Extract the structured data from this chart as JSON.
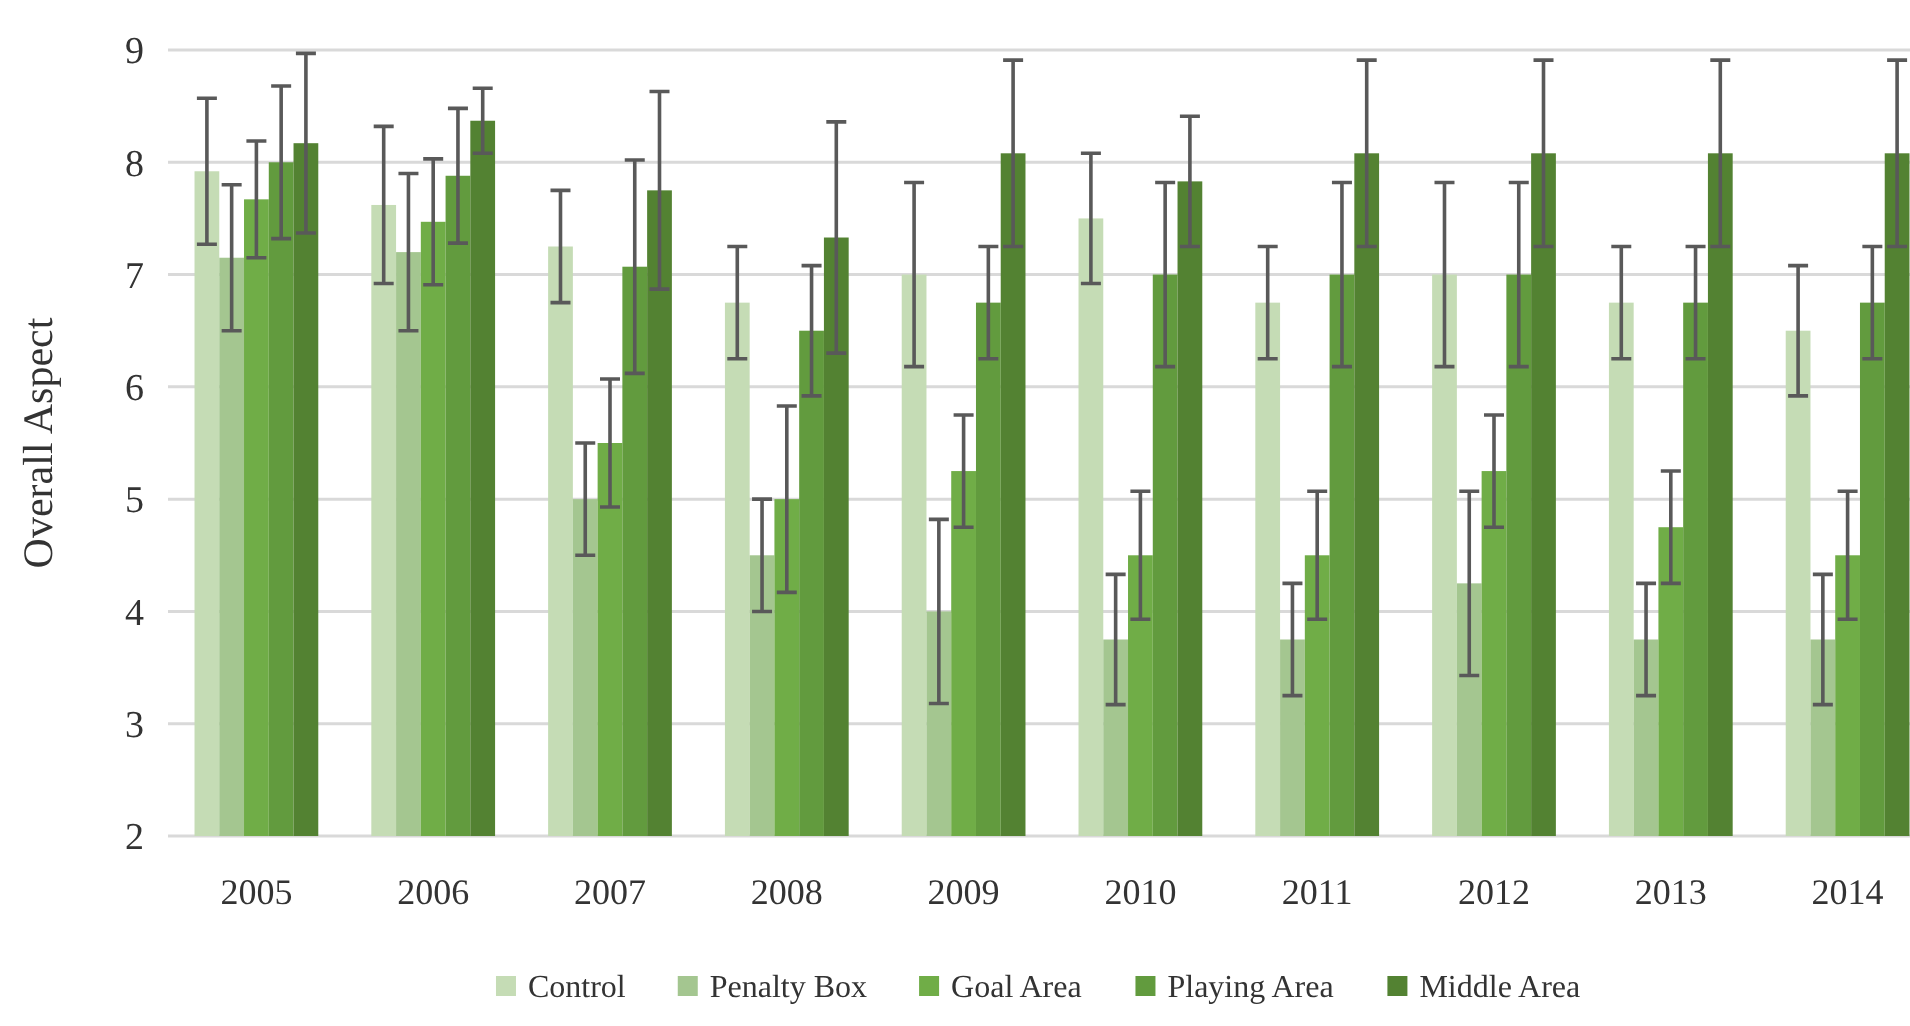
{
  "chart_data": {
    "type": "bar",
    "ylabel": "Overall Aspect",
    "categories": [
      "2005",
      "2006",
      "2007",
      "2008",
      "2009",
      "2010",
      "2011",
      "2012",
      "2013",
      "2014"
    ],
    "series": [
      {
        "name": "Control",
        "color": "#c5dcb5",
        "values": [
          7.92,
          7.62,
          7.25,
          6.75,
          7.0,
          7.5,
          6.75,
          7.0,
          6.75,
          6.5
        ],
        "errors": [
          0.65,
          0.7,
          0.5,
          0.5,
          0.82,
          0.58,
          0.5,
          0.82,
          0.5,
          0.58
        ]
      },
      {
        "name": "Penalty Box",
        "color": "#a4c690",
        "values": [
          7.15,
          7.2,
          5.0,
          4.5,
          4.0,
          3.75,
          3.75,
          4.25,
          3.75,
          3.75
        ],
        "errors": [
          0.65,
          0.7,
          0.5,
          0.5,
          0.82,
          0.58,
          0.5,
          0.82,
          0.5,
          0.58
        ]
      },
      {
        "name": "Goal Area",
        "color": "#70ad47",
        "values": [
          7.67,
          7.47,
          5.5,
          5.0,
          5.25,
          4.5,
          4.5,
          5.25,
          4.75,
          4.5
        ],
        "errors": [
          0.52,
          0.56,
          0.57,
          0.83,
          0.5,
          0.57,
          0.57,
          0.5,
          0.5,
          0.57
        ]
      },
      {
        "name": "Playing Area",
        "color": "#629b3e",
        "values": [
          8.0,
          7.88,
          7.07,
          6.5,
          6.75,
          7.0,
          7.0,
          7.0,
          6.75,
          6.75
        ],
        "errors": [
          0.68,
          0.6,
          0.95,
          0.58,
          0.5,
          0.82,
          0.82,
          0.82,
          0.5,
          0.5
        ]
      },
      {
        "name": "Middle Area",
        "color": "#538232",
        "values": [
          8.17,
          8.37,
          7.75,
          7.33,
          8.08,
          7.83,
          8.08,
          8.08,
          8.08,
          8.08
        ],
        "errors": [
          0.8,
          0.29,
          0.88,
          1.03,
          0.83,
          0.58,
          0.83,
          0.83,
          0.83,
          0.83
        ]
      }
    ],
    "ylim": [
      2,
      9
    ],
    "yticks": [
      2,
      3,
      4,
      5,
      6,
      7,
      8,
      9
    ],
    "grid": "y",
    "legend": "bottom"
  }
}
